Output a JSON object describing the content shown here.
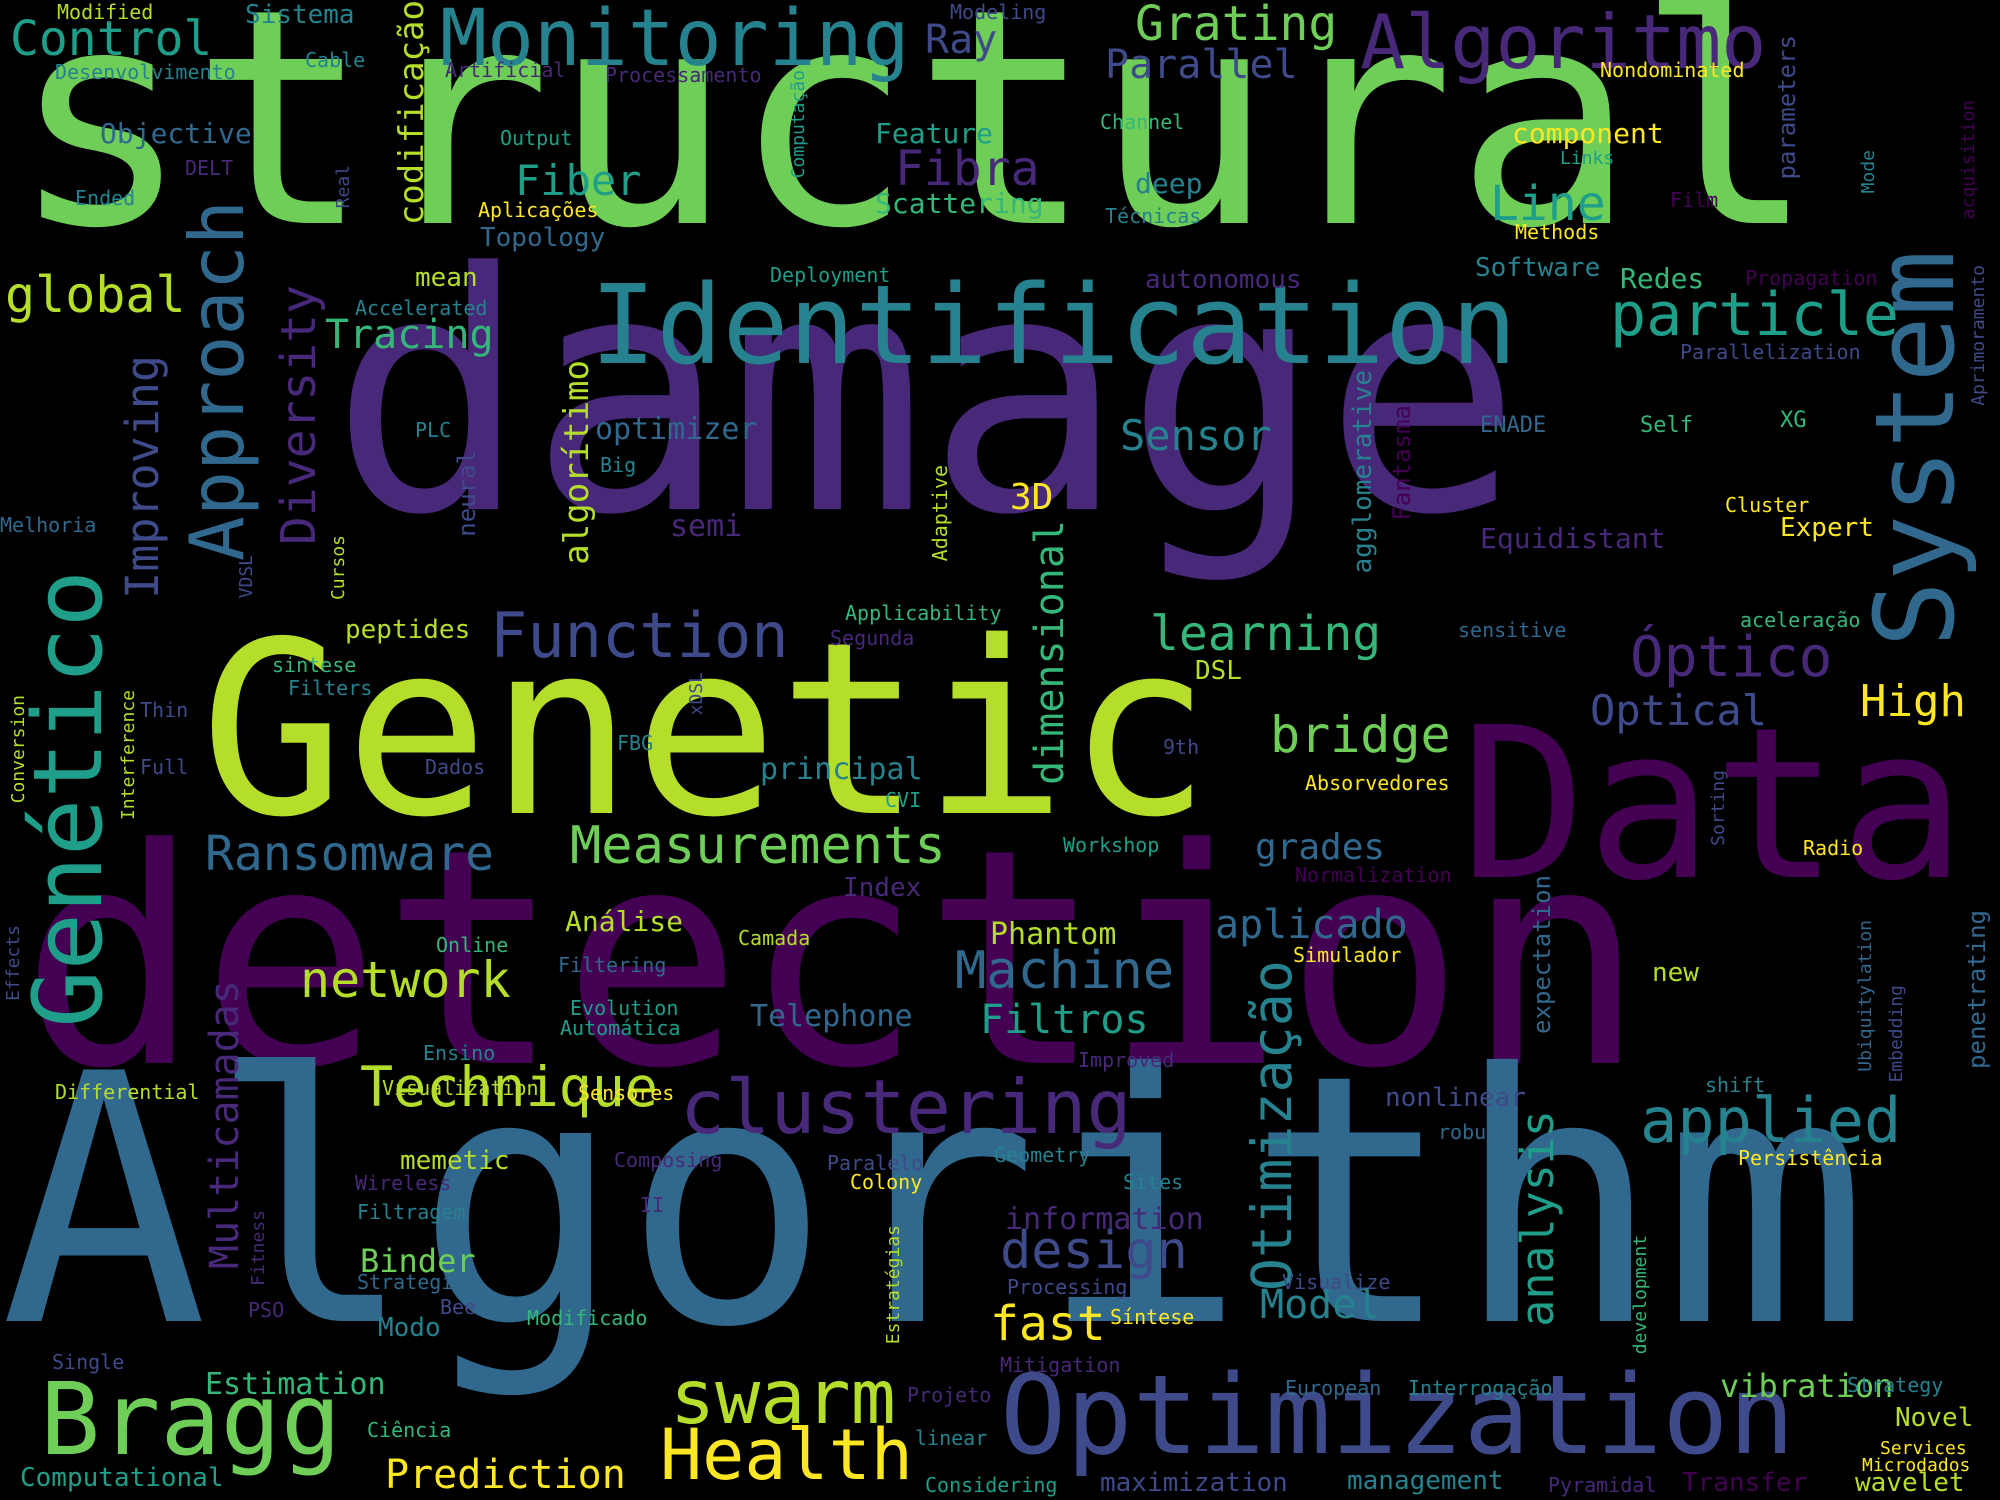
{
  "background": "#000000",
  "palette": [
    "#440154",
    "#482878",
    "#3e4a89",
    "#31688e",
    "#26828e",
    "#1f9e89",
    "#35b779",
    "#6ece58",
    "#b5de2b",
    "#fde725"
  ],
  "words": {
    "structural": "structural",
    "damage": "damage",
    "detection": "detection",
    "algorithm": "Algorithm",
    "genetic": "Genetic",
    "data": "Data",
    "identification": "Identification",
    "optimization": "Optimization",
    "system": "System",
    "monitoring": "Monitoring",
    "algoritmo": "Algoritmo",
    "genetico": "Genético",
    "health": "Health",
    "bragg": "Bragg",
    "swarm": "swarm",
    "clustering": "clustering",
    "function": "Function",
    "measurements": "Measurements",
    "technique": "Technique",
    "approach": "Approach",
    "particle": "particle",
    "optico": "Óptico",
    "applied": "applied",
    "machine": "Machine",
    "ransomware": "Ransomware",
    "control": "Control",
    "grating": "Grating",
    "network": "network",
    "learning": "learning",
    "bridge": "bridge",
    "design": "design",
    "fast": "fast",
    "otimizacao": "Otimização",
    "diversity": "Diversity",
    "analysis": "analysis",
    "improving": "Improving",
    "global": "global",
    "fibra": "Fibra",
    "line": "Line",
    "fiber": "Fiber",
    "tracing": "Tracing",
    "sensor": "Sensor",
    "optical": "Optical",
    "high": "High",
    "filtros": "Filtros",
    "aplicado": "aplicado",
    "model": "Model",
    "multicamadas": "Multicamadas",
    "dimensional": "dimensional",
    "codificacao": "codificação",
    "algoritimo": "algorítimo",
    "prediction": "Prediction",
    "vibration": "vibration",
    "estimation": "Estimation",
    "binder": "Binder",
    "telephone": "Telephone",
    "phantom": "Phantom",
    "grades": "grades",
    "information": "information",
    "principal": "principal",
    "optimizer": "optimizer",
    "parallel": "Parallel",
    "ray": "Ray",
    "feature": "Feature",
    "scattering": "Scattering",
    "objective": "Objective",
    "topology": "Topology",
    "software": "Software",
    "redes": "Redes",
    "component": "component",
    "mean": "mean",
    "deep": "deep",
    "sistema": "Sistema",
    "modified": "Modified",
    "desenvolvimento": "Desenvolvimento",
    "cable": "Cable",
    "artificial": "Artificial",
    "processamento": "Processamento",
    "modeling": "Modeling",
    "nondominated": "Nondominated",
    "parameters": "parameters",
    "acquisition": "acquisition",
    "output": "Output",
    "channel": "Channel",
    "computacao": "Computação",
    "links": "Links",
    "mode": "Mode",
    "delt": "DELT",
    "ended": "Ended",
    "real": "Real",
    "aplicacoes": "Aplicações",
    "tecnicas": "Técnicas",
    "methods": "Methods",
    "film": "Film",
    "deployment": "Deployment",
    "autonomous": "autonomous",
    "propagation": "Propagation",
    "aprimoramento": "Aprimoramento",
    "accelerated": "Accelerated",
    "parallelization": "Parallelization",
    "plc": "PLC",
    "fantasma": "Fantasma",
    "agglomerative": "agglomerative",
    "enade": "ENADE",
    "self": "Self",
    "xg": "XG",
    "big": "Big",
    "neural": "neural",
    "adaptive": "Adaptive",
    "three_d": "3D",
    "semi": "semi",
    "equidistant": "Equidistant",
    "cluster": "Cluster",
    "expert": "Expert",
    "melhoria": "Melhoria",
    "vdsl": "VDSL",
    "cursos": "Cursos",
    "applicability": "Applicability",
    "aceleracao": "aceleração",
    "peptides": "peptides",
    "segunda": "Segunda",
    "sensitive": "sensitive",
    "sintese_lower": "sintese",
    "filters": "Filters",
    "dsl": "DSL",
    "xdsl": "xDSL",
    "thin": "Thin",
    "conversion": "Conversion",
    "interference": "Interference",
    "full": "Full",
    "dados": "Dados",
    "fbg": "FBG",
    "ninth": "9th",
    "absorvedores": "Absorvedores",
    "sorting": "Sorting",
    "cvi": "CVI",
    "workshop": "Workshop",
    "radio": "Radio",
    "index": "Index",
    "normalization": "Normalization",
    "analise": "Análise",
    "camada": "Camada",
    "online": "Online",
    "filtering": "Filtering",
    "simulador": "Simulador",
    "expectation": "expectation",
    "new": "new",
    "ubiquitylation": "Ubiquitylation",
    "embedding": "Embedding",
    "penetrating": "penetrating",
    "effects": "Effects",
    "evolution": "Evolution",
    "automatica": "Automática",
    "ensino": "Ensino",
    "improved": "Improved",
    "differential": "Differential",
    "visualization": "Visualization",
    "sensores": "Sensores",
    "nonlinear": "nonlinear",
    "shift": "shift",
    "robust": "robust",
    "memetic": "memetic",
    "composing": "Composing",
    "paralelo": "Paralelo",
    "geometry": "Geometry",
    "persistencia": "Persistência",
    "wireless": "Wireless",
    "colony": "Colony",
    "sites": "Sites",
    "ii": "II",
    "filtragem": "Filtragem",
    "fitness": "Fitness",
    "strategies": "Strategies",
    "bee": "Bee",
    "pso": "PSO",
    "processing": "Processing",
    "visualize": "Visualize",
    "modo": "Modo",
    "modificado": "Modificado",
    "estrategias": "Estratégias",
    "sintese": "Síntese",
    "development": "development",
    "mitigation": "Mitigation",
    "single": "Single",
    "projeto": "Projeto",
    "european": "European",
    "interrogacao": "Interrogação",
    "strategy": "Strategy",
    "novel": "Novel",
    "ciencia": "Ciência",
    "linear": "linear",
    "services": "Services",
    "microdados": "Microdados",
    "computational": "Computational",
    "considering": "Considering",
    "maximization": "maximization",
    "management": "management",
    "pyramidal": "Pyramidal",
    "transfer": "Transfer",
    "wavelet": "wavelet"
  }
}
